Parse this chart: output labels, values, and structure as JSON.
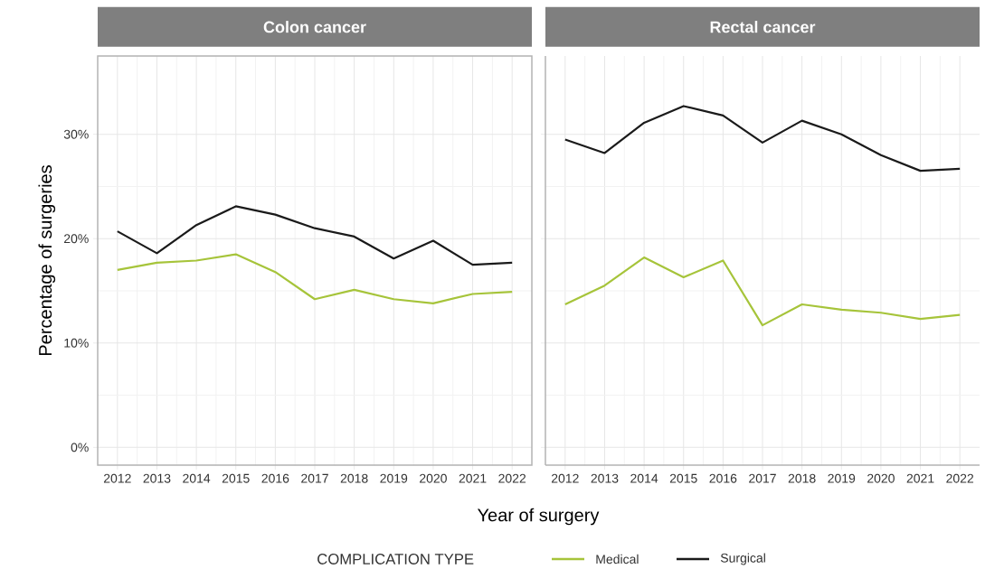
{
  "chart_data": [
    {
      "type": "line",
      "title": "Colon cancer",
      "ylabel": "Percentage of surgeries",
      "xlabel": "Year of surgery",
      "legend_title": "COMPLICATION TYPE",
      "legend": "bottom",
      "grid": true,
      "x": [
        2012,
        2013,
        2014,
        2015,
        2016,
        2017,
        2018,
        2019,
        2020,
        2021,
        2022
      ],
      "series": [
        {
          "name": "Medical",
          "color": "#a6c43a",
          "values": [
            17.0,
            17.7,
            17.9,
            18.5,
            16.8,
            14.2,
            15.1,
            14.2,
            13.8,
            14.7,
            14.9
          ]
        },
        {
          "name": "Surgical",
          "color": "#1a1a1a",
          "values": [
            20.7,
            18.6,
            21.3,
            23.1,
            22.3,
            21.0,
            20.2,
            18.1,
            19.8,
            17.5,
            17.7
          ]
        }
      ],
      "xlim": [
        2011.5,
        2022.5
      ],
      "ylim": [
        -1.7,
        37.5
      ],
      "xticks": [
        2012,
        2013,
        2014,
        2015,
        2016,
        2017,
        2018,
        2019,
        2020,
        2021,
        2022
      ],
      "yticks": [
        {
          "value": 0,
          "label": "0%"
        },
        {
          "value": 10,
          "label": "10%"
        },
        {
          "value": 20,
          "label": "20%"
        },
        {
          "value": 30,
          "label": "30%"
        }
      ]
    },
    {
      "type": "line",
      "title": "Rectal cancer",
      "grid": true,
      "tick_labels": "x",
      "x": [
        2012,
        2013,
        2014,
        2015,
        2016,
        2017,
        2018,
        2019,
        2020,
        2021,
        2022
      ],
      "series": [
        {
          "color": "#a6c43a",
          "values": [
            13.7,
            15.5,
            18.2,
            16.3,
            17.9,
            11.7,
            13.7,
            13.2,
            12.9,
            12.3,
            12.7
          ]
        },
        {
          "color": "#1a1a1a",
          "values": [
            29.5,
            28.2,
            31.1,
            32.7,
            31.8,
            29.2,
            31.3,
            30.0,
            28.0,
            26.5,
            26.7
          ]
        }
      ],
      "xlim": [
        2011.5,
        2022.5
      ],
      "ylim": [
        -1.7,
        37.5
      ],
      "xticks": [
        2012,
        2013,
        2014,
        2015,
        2016,
        2017,
        2018,
        2019,
        2020,
        2021,
        2022
      ],
      "yticks": [
        {
          "value": 0,
          "label": null
        },
        {
          "value": 10,
          "label": null
        },
        {
          "value": 20,
          "label": null
        },
        {
          "value": 30,
          "label": null
        }
      ]
    }
  ]
}
